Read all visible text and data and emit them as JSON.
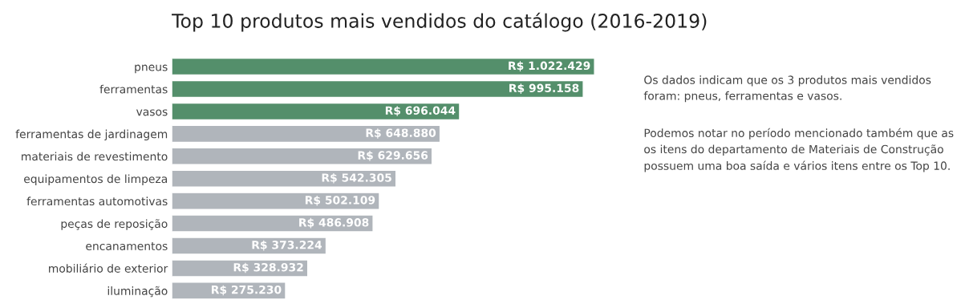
{
  "chart_data": {
    "type": "bar",
    "orientation": "horizontal",
    "title": "Top 10 produtos mais vendidos do catálogo (2016-2019)",
    "categories": [
      "pneus",
      "ferramentas",
      "vasos",
      "ferramentas de jardinagem",
      "materiais de revestimento",
      "equipamentos de limpeza",
      "ferramentas automotivas",
      "peças de reposição",
      "encanamentos",
      "mobiliário de exterior",
      "iluminação"
    ],
    "values": [
      1022429,
      995158,
      696044,
      648880,
      629656,
      542305,
      502109,
      486908,
      373224,
      328932,
      275230
    ],
    "value_labels": [
      "R$ 1.022.429",
      "R$ 995.158",
      "R$ 696.044",
      "R$ 648.880",
      "R$ 629.656",
      "R$ 542.305",
      "R$ 502.109",
      "R$ 486.908",
      "R$ 373.224",
      "R$ 328.932",
      "R$ 275.230"
    ],
    "colors": [
      "#548f6b",
      "#548f6b",
      "#548f6b",
      "#b0b5bb",
      "#b0b5bb",
      "#b0b5bb",
      "#b0b5bb",
      "#b0b5bb",
      "#b0b5bb",
      "#b0b5bb",
      "#b0b5bb"
    ],
    "annotations": [
      "Os dados indicam que os 3 produtos mais vendidos\nforam: pneus, ferramentas e vasos.",
      "Podemos notar no período mencionado também que as\nos itens do departamento de Materiais de Construção\npossuem uma boa saída e vários itens entre os Top 10."
    ],
    "grid": false,
    "legend": false
  }
}
